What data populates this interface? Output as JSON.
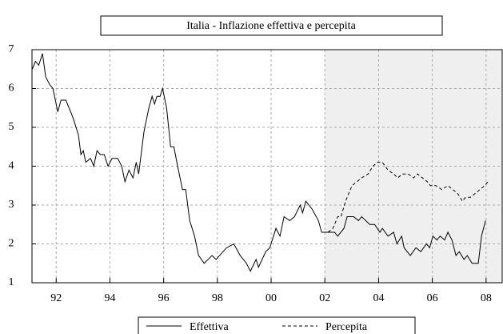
{
  "chart_data": {
    "type": "line",
    "title": "Italia - Inflazione effettiva e percepita",
    "xlim": [
      1991.1,
      2008.6
    ],
    "ylim": [
      1,
      7
    ],
    "yticks": [
      1,
      2,
      3,
      4,
      5,
      6,
      7
    ],
    "xticks": [
      {
        "value": 1992,
        "label": "92"
      },
      {
        "value": 1994,
        "label": "94"
      },
      {
        "value": 1996,
        "label": "96"
      },
      {
        "value": 1998,
        "label": "98"
      },
      {
        "value": 2000,
        "label": "00"
      },
      {
        "value": 2002,
        "label": "02"
      },
      {
        "value": 2004,
        "label": "04"
      },
      {
        "value": 2006,
        "label": "06"
      },
      {
        "value": 2008,
        "label": "08"
      }
    ],
    "grid": true,
    "shaded_region": [
      2002,
      2008.6
    ],
    "legend": "bottom",
    "series": [
      {
        "name": "Effettiva",
        "color": "#000000",
        "dash": "solid",
        "x": [
          1991.11,
          1991.23,
          1991.35,
          1991.49,
          1991.61,
          1991.76,
          1991.88,
          1992.06,
          1992.18,
          1992.36,
          1992.54,
          1992.65,
          1992.83,
          1992.92,
          1993.01,
          1993.1,
          1993.28,
          1993.4,
          1993.52,
          1993.64,
          1993.79,
          1993.93,
          1994.08,
          1994.29,
          1994.44,
          1994.56,
          1994.71,
          1994.86,
          1994.98,
          1995.07,
          1995.27,
          1995.45,
          1995.57,
          1995.66,
          1995.75,
          1995.87,
          1995.96,
          1996.11,
          1996.26,
          1996.38,
          1996.52,
          1996.7,
          1996.82,
          1996.97,
          1997.15,
          1997.3,
          1997.51,
          1997.8,
          1997.95,
          1998.34,
          1998.61,
          1998.85,
          1999.08,
          1999.23,
          1999.44,
          1999.53,
          1999.8,
          1999.95,
          2000.18,
          2000.33,
          2000.48,
          2000.69,
          2000.87,
          2001.08,
          2001.17,
          2001.29,
          2001.52,
          2001.76,
          2001.88,
          2002.36,
          2002.48,
          2002.71,
          2002.83,
          2003.07,
          2003.25,
          2003.37,
          2003.67,
          2003.85,
          2004.05,
          2004.14,
          2004.35,
          2004.56,
          2004.68,
          2004.86,
          2004.95,
          2005.18,
          2005.39,
          2005.57,
          2005.78,
          2005.9,
          2006.02,
          2006.17,
          2006.29,
          2006.46,
          2006.58,
          2006.73,
          2006.88,
          2007.0,
          2007.18,
          2007.3,
          2007.48,
          2007.71,
          2007.83,
          2007.98
        ],
        "values": [
          6.5,
          6.7,
          6.6,
          6.9,
          6.3,
          6.1,
          6.0,
          5.4,
          5.7,
          5.7,
          5.4,
          5.2,
          4.8,
          4.3,
          4.4,
          4.1,
          4.2,
          4.0,
          4.4,
          4.3,
          4.3,
          4.0,
          4.2,
          4.2,
          4.0,
          3.6,
          3.9,
          3.7,
          4.1,
          3.8,
          4.9,
          5.5,
          5.8,
          5.6,
          5.8,
          5.8,
          6.0,
          5.5,
          4.5,
          4.5,
          4.0,
          3.4,
          3.4,
          2.6,
          2.2,
          1.7,
          1.5,
          1.7,
          1.6,
          1.9,
          2.0,
          1.7,
          1.5,
          1.3,
          1.6,
          1.4,
          1.8,
          1.9,
          2.4,
          2.2,
          2.7,
          2.6,
          2.7,
          3.0,
          2.8,
          3.1,
          2.9,
          2.6,
          2.3,
          2.3,
          2.2,
          2.4,
          2.7,
          2.7,
          2.6,
          2.7,
          2.5,
          2.5,
          2.3,
          2.4,
          2.2,
          2.3,
          2.0,
          2.2,
          1.9,
          1.7,
          1.9,
          1.8,
          2.0,
          1.9,
          2.2,
          2.1,
          2.2,
          2.1,
          2.3,
          2.1,
          1.7,
          1.8,
          1.6,
          1.7,
          1.5,
          1.5,
          2.2,
          2.6
        ]
      },
      {
        "name": "Percepita",
        "color": "#000000",
        "dash": "dashed",
        "x": [
          2002.12,
          2002.3,
          2002.48,
          2002.6,
          2002.77,
          2003.01,
          2003.19,
          2003.37,
          2003.61,
          2003.79,
          2003.96,
          2004.14,
          2004.35,
          2004.56,
          2004.71,
          2004.89,
          2005.1,
          2005.3,
          2005.45,
          2005.63,
          2005.81,
          2005.93,
          2006.14,
          2006.35,
          2006.58,
          2006.76,
          2006.94,
          2007.12,
          2007.24,
          2007.42,
          2007.6,
          2007.77,
          2007.95,
          2008.07
        ],
        "values": [
          2.3,
          2.4,
          2.7,
          2.7,
          3.1,
          3.5,
          3.6,
          3.7,
          3.8,
          4.0,
          4.1,
          4.1,
          3.9,
          3.8,
          3.7,
          3.8,
          3.8,
          3.7,
          3.8,
          3.7,
          3.6,
          3.5,
          3.5,
          3.4,
          3.5,
          3.4,
          3.3,
          3.1,
          3.2,
          3.2,
          3.3,
          3.4,
          3.5,
          3.6
        ]
      }
    ]
  }
}
